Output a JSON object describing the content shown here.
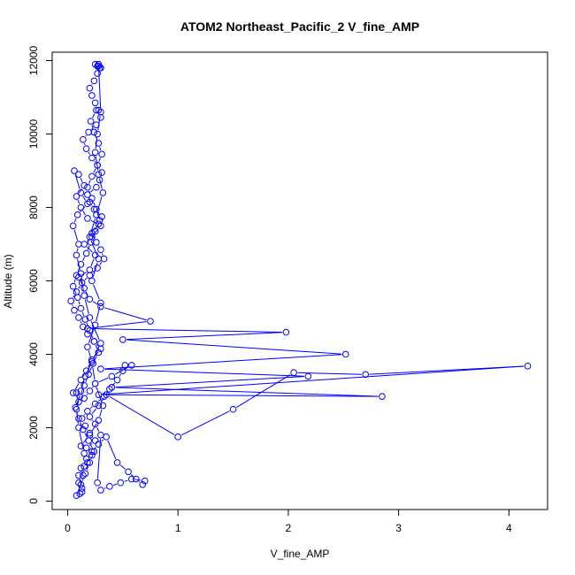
{
  "chart_data": {
    "type": "line",
    "title": "ATOM2 Northeast_Pacific_2 V_fine_AMP",
    "xlabel": "V_fine_AMP",
    "ylabel": "Altitude (m)",
    "xlim": [
      -0.14,
      4.35
    ],
    "ylim": [
      -230,
      12230
    ],
    "xticks": [
      0,
      1,
      2,
      3,
      4
    ],
    "yticks": [
      0,
      2000,
      4000,
      6000,
      8000,
      10000,
      12000
    ],
    "grid": false,
    "legend": "none",
    "marker": "open-circle",
    "color": "#0000ff",
    "series": [
      {
        "x": [
          0.11,
          0.13,
          0.1,
          0.15,
          0.17,
          0.22,
          0.28,
          0.35,
          0.45,
          0.55,
          0.62,
          0.68,
          0.7,
          0.58,
          0.48,
          0.38,
          0.3,
          0.27,
          0.3,
          0.25,
          0.2,
          0.28,
          0.35,
          1.0,
          1.5,
          2.05,
          2.7,
          4.17,
          0.28,
          2.85,
          0.4,
          2.18,
          0.3,
          2.52,
          0.5,
          1.98,
          0.18,
          0.75,
          0.3,
          0.2,
          0.15,
          0.1,
          0.2,
          0.25,
          0.15,
          0.22,
          0.3,
          0.18,
          0.12,
          0.08,
          0.15,
          0.1,
          0.06,
          0.12,
          0.18,
          0.09,
          0.05,
          0.1,
          0.08,
          0.12,
          0.15,
          0.2,
          0.3,
          0.22,
          0.25,
          0.32,
          0.28,
          0.2,
          0.12,
          0.15,
          0.1,
          0.08,
          0.12,
          0.16,
          0.22,
          0.18,
          0.25,
          0.3,
          0.22,
          0.28,
          0.2,
          0.26,
          0.32,
          0.28,
          0.25,
          0.27,
          0.3,
          0.28
        ],
        "y": [
          200,
          350,
          700,
          950,
          1150,
          1350,
          1550,
          1750,
          1050,
          800,
          600,
          450,
          550,
          600,
          500,
          400,
          300,
          500,
          1800,
          2100,
          2300,
          2600,
          2900,
          1750,
          2500,
          3500,
          3450,
          3680,
          2900,
          2850,
          3100,
          3400,
          3600,
          4000,
          4400,
          4600,
          4700,
          4900,
          5300,
          5500,
          5800,
          6100,
          6300,
          6700,
          7000,
          7200,
          7500,
          7700,
          8000,
          8300,
          8600,
          8900,
          9000,
          8400,
          8100,
          7800,
          7500,
          7000,
          6700,
          6200,
          5600,
          5000,
          4300,
          3800,
          3200,
          2600,
          2200,
          1800,
          1500,
          1300,
          2000,
          2500,
          3000,
          3400,
          3800,
          4200,
          4800,
          5400,
          6000,
          6600,
          7200,
          7800,
          8400,
          8900,
          9500,
          10000,
          10600,
          11900
        ]
      },
      {
        "x": [
          0.13,
          0.1,
          0.14,
          0.12,
          0.18,
          0.22,
          0.17,
          0.25,
          0.2,
          0.16,
          0.13,
          0.18,
          0.25,
          0.33,
          0.38,
          0.45,
          0.5,
          0.52,
          0.58,
          0.4,
          0.25,
          0.2,
          0.15,
          0.1,
          0.08,
          0.05,
          0.12,
          0.17,
          0.22,
          0.3,
          0.24,
          0.18,
          0.14,
          0.1,
          0.06,
          0.03,
          0.08,
          0.13,
          0.2,
          0.27,
          0.33,
          0.3,
          0.26,
          0.22,
          0.28,
          0.31,
          0.24,
          0.2,
          0.18,
          0.26,
          0.29,
          0.31,
          0.27,
          0.22,
          0.17,
          0.14,
          0.19,
          0.26,
          0.3,
          0.28,
          0.25,
          0.22,
          0.2,
          0.24,
          0.27,
          0.3,
          0.28,
          0.25,
          0.27,
          0.29,
          0.28
        ],
        "y": [
          250,
          500,
          700,
          900,
          1050,
          1250,
          1450,
          1650,
          1850,
          2050,
          2250,
          2450,
          2650,
          2850,
          3050,
          3300,
          3550,
          3700,
          3700,
          3400,
          3200,
          3000,
          2800,
          2700,
          2950,
          2950,
          3300,
          3550,
          3850,
          4150,
          4350,
          4550,
          4750,
          5000,
          5200,
          5450,
          5700,
          5950,
          6150,
          6350,
          6600,
          6850,
          7050,
          7300,
          7550,
          7750,
          7950,
          8150,
          8350,
          8550,
          8750,
          8950,
          9150,
          9350,
          9600,
          9850,
          10050,
          10250,
          10450,
          10650,
          10850,
          11050,
          11250,
          11450,
          11650,
          11800,
          11850,
          11900,
          11850,
          11800,
          11900
        ]
      },
      {
        "x": [
          0.08,
          0.12,
          0.16,
          0.2,
          0.24,
          0.19,
          0.14,
          0.1,
          0.07,
          0.11,
          0.15,
          0.19,
          0.23,
          0.28,
          0.24,
          0.2,
          0.16,
          0.12,
          0.09,
          0.05,
          0.08,
          0.12,
          0.17,
          0.21,
          0.25,
          0.29,
          0.26,
          0.22,
          0.18,
          0.22,
          0.27,
          0.31,
          0.28,
          0.24,
          0.21,
          0.26
        ],
        "y": [
          150,
          450,
          750,
          1050,
          1350,
          1650,
          1950,
          2250,
          2550,
          2850,
          3150,
          3450,
          3750,
          4050,
          4350,
          4650,
          4950,
          5250,
          5550,
          5850,
          6150,
          6450,
          6750,
          7050,
          7350,
          7650,
          7950,
          8250,
          8550,
          8850,
          9150,
          9450,
          9750,
          10050,
          10350,
          10650
        ]
      }
    ]
  }
}
